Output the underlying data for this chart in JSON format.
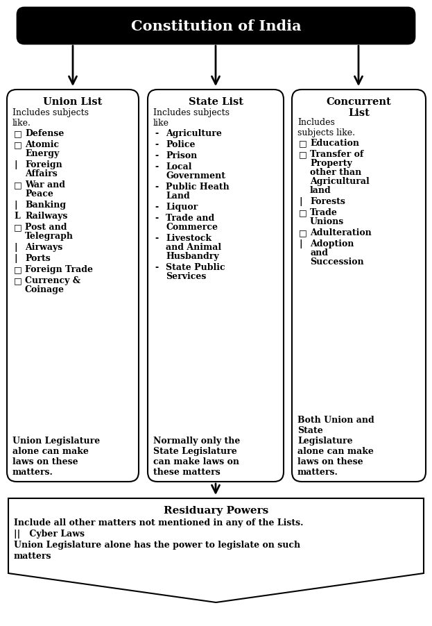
{
  "title": "Constitution of India",
  "col1_title": "Union List",
  "col1_subtitle": "Includes subjects\nlike.",
  "col1_items": [
    [
      "□",
      "Defense"
    ],
    [
      "□",
      "Atomic\nEnergy"
    ],
    [
      "|",
      "Foreign\nAffairs"
    ],
    [
      "□",
      "War and\nPeace"
    ],
    [
      "|",
      "Banking"
    ],
    [
      "L",
      "Railways"
    ],
    [
      "□",
      "Post and\nTelegraph"
    ],
    [
      "|",
      "Airways"
    ],
    [
      "|",
      "Ports"
    ],
    [
      "□",
      "Foreign Trade"
    ],
    [
      "□",
      "Currency &\nCoinage"
    ]
  ],
  "col1_footer": "Union Legislature\nalone can make\nlaws on these\nmatters.",
  "col2_title": "State List",
  "col2_subtitle": "Includes subjects\nlike",
  "col2_items": [
    [
      "-",
      "Agriculture"
    ],
    [
      "-",
      "Police"
    ],
    [
      "-",
      "Prison"
    ],
    [
      "-",
      "Local\nGovernment"
    ],
    [
      "-",
      "Public Heath\nLand"
    ],
    [
      "-",
      "Liquor"
    ],
    [
      "-",
      "Trade and\nCommerce"
    ],
    [
      "-",
      "Livestock\nand Animal\nHusbandry"
    ],
    [
      "-",
      "State Public\nServices"
    ]
  ],
  "col2_footer": "Normally only the\nState Legislature\ncan make laws on\nthese matters",
  "col3_title": "Concurrent\nList",
  "col3_subtitle": "Includes\nsubjects like.",
  "col3_items": [
    [
      "□",
      "Education"
    ],
    [
      "□",
      "Transfer of\nProperty\nother than\nAgricultural\nland"
    ],
    [
      "|",
      "Forests"
    ],
    [
      "□",
      "Trade\nUnions"
    ],
    [
      "□",
      "Adulteration"
    ],
    [
      "|",
      "Adoption\nand\nSuccession"
    ]
  ],
  "col3_footer": "Both Union and\nState\nLegislature\nalone can make\nlaws on these\nmatters.",
  "residuary_title": "Residuary Powers",
  "residuary_line1": "Include all other matters not mentioned in any of the Lists.",
  "residuary_line2": "||   Cyber Laws",
  "residuary_line3": "Union Legislature alone has the power to legislate on such",
  "residuary_line4": "matters"
}
